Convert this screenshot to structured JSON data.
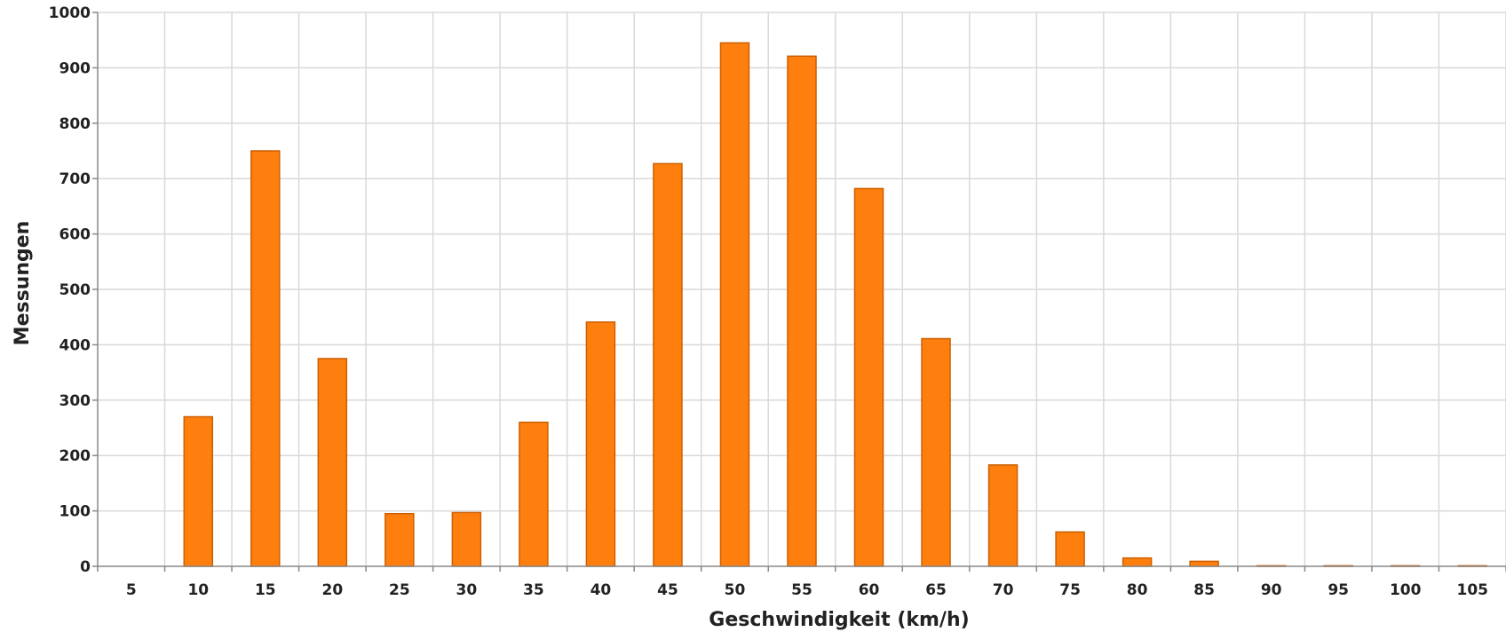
{
  "chart_data": {
    "type": "bar",
    "xlabel": "Geschwindigkeit (km/h)",
    "ylabel": "Messungen",
    "ylim": [
      0,
      1000
    ],
    "y_ticks": [
      "0",
      "100",
      "200",
      "300",
      "400",
      "500",
      "600",
      "700",
      "800",
      "900",
      "1000"
    ],
    "categories": [
      "5",
      "10",
      "15",
      "20",
      "25",
      "30",
      "35",
      "40",
      "45",
      "50",
      "55",
      "60",
      "65",
      "70",
      "75",
      "80",
      "85",
      "90",
      "95",
      "100",
      "105"
    ],
    "values": [
      0,
      270,
      750,
      375,
      95,
      97,
      260,
      441,
      727,
      945,
      921,
      682,
      411,
      183,
      62,
      15,
      9,
      1,
      1,
      1,
      1
    ],
    "grid": true,
    "legend": "none",
    "colors": {
      "bar_fill": "#ff7f0e",
      "bar_stroke": "#cc5f00",
      "grid": "#d9d9d9",
      "axis": "#888888",
      "text": "#222222"
    }
  }
}
